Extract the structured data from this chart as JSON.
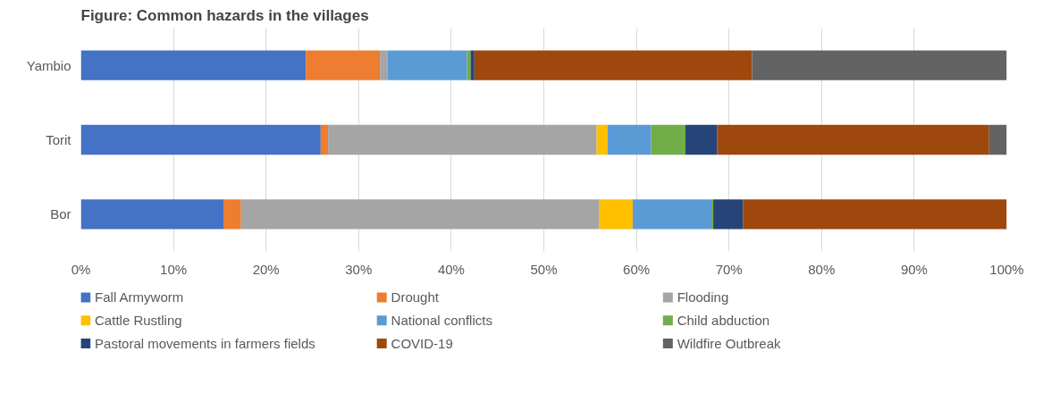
{
  "chart_data": {
    "type": "bar",
    "orientation": "horizontal",
    "stacked": true,
    "title": "Figure: Common hazards in the villages",
    "categories": [
      "Yambio",
      "Torit",
      "Bor"
    ],
    "series": [
      {
        "name": "Fall Armyworm",
        "color": "#4472c4",
        "values": [
          24.3,
          25.9,
          15.4
        ]
      },
      {
        "name": "Drought",
        "color": "#ed7d31",
        "values": [
          8.0,
          0.8,
          1.9
        ]
      },
      {
        "name": "Flooding",
        "color": "#a5a5a5",
        "values": [
          0.8,
          29.0,
          38.7
        ]
      },
      {
        "name": "Cattle Rustling",
        "color": "#ffc000",
        "values": [
          0,
          1.2,
          3.6
        ]
      },
      {
        "name": "National conflicts",
        "color": "#5b9bd5",
        "values": [
          8.6,
          4.7,
          8.5
        ]
      },
      {
        "name": "Child abduction",
        "color": "#70ad47",
        "values": [
          0.4,
          3.7,
          0.2
        ]
      },
      {
        "name": "Pastoral movements in farmers fields",
        "color": "#264478",
        "values": [
          0.4,
          3.4,
          3.2
        ]
      },
      {
        "name": "COVID-19",
        "color": "#9e480e",
        "values": [
          30.0,
          29.4,
          28.5
        ]
      },
      {
        "name": "Wildfire Outbreak",
        "color": "#636363",
        "values": [
          27.5,
          1.9,
          0
        ]
      }
    ],
    "xlim": [
      0,
      100
    ],
    "xticks": [
      {
        "value": 0,
        "label": "0%"
      },
      {
        "value": 10,
        "label": "10%"
      },
      {
        "value": 20,
        "label": "20%"
      },
      {
        "value": 30,
        "label": "30%"
      },
      {
        "value": 40,
        "label": "40%"
      },
      {
        "value": 50,
        "label": "50%"
      },
      {
        "value": 60,
        "label": "60%"
      },
      {
        "value": 70,
        "label": "70%"
      },
      {
        "value": 80,
        "label": "80%"
      },
      {
        "value": 90,
        "label": "90%"
      },
      {
        "value": 100,
        "label": "100%"
      }
    ],
    "grid": "x",
    "legend": "bottom"
  }
}
